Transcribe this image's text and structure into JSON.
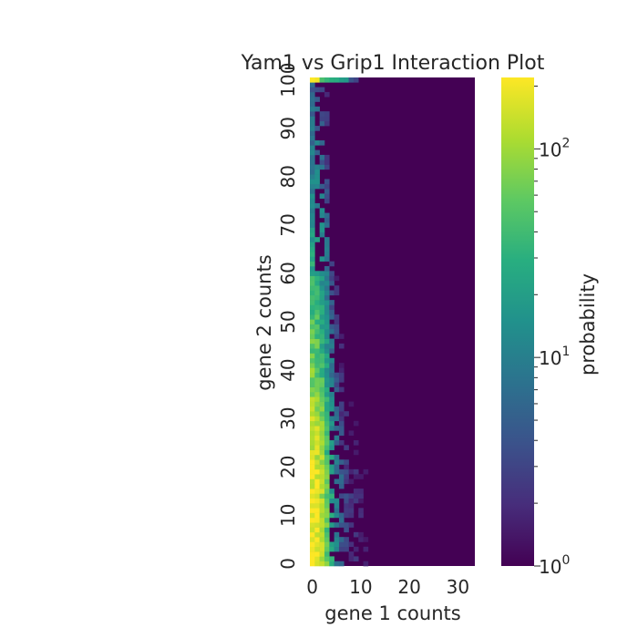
{
  "chart_data": {
    "type": "heatmap",
    "title": "Yam1 vs Grip1 Interaction Plot",
    "xlabel": "gene 1 counts",
    "ylabel": "gene 2 counts",
    "colorbar_label": "probability",
    "colorbar_scale": "log",
    "colorbar_range": [
      1,
      220
    ],
    "colorbar_ticks": [
      {
        "base": "10",
        "exp": "0"
      },
      {
        "base": "10",
        "exp": "1"
      },
      {
        "base": "10",
        "exp": "2"
      }
    ],
    "colormap": "viridis",
    "x_range": [
      0,
      33
    ],
    "y_range": [
      0,
      100
    ],
    "x_ticks": [
      "0",
      "10",
      "20",
      "30"
    ],
    "y_ticks": [
      "0",
      "10",
      "20",
      "30",
      "40",
      "50",
      "60",
      "70",
      "80",
      "90",
      "100"
    ],
    "grid": false,
    "background_value": 1,
    "description_of_values": "probability per (gene 1 count, gene 2 count) cell; highest near gene 1 = 0-1 at gene 2 = 0-20 and along gene 2 = 100",
    "profile_columns": {
      "gene1": [
        0,
        1,
        2,
        3,
        4,
        5,
        6,
        7,
        8,
        10,
        12
      ],
      "peak_at_gene2_0_to_20": [
        210,
        190,
        120,
        60,
        25,
        10,
        5,
        3,
        2,
        1.5,
        1
      ]
    },
    "top_row_gene2_100": [
      {
        "gene1": 0,
        "value": 220
      },
      {
        "gene1": 1,
        "value": 200
      },
      {
        "gene1": 2,
        "value": 45
      },
      {
        "gene1": 3,
        "value": 35
      },
      {
        "gene1": 4,
        "value": 30
      },
      {
        "gene1": 5,
        "value": 28
      },
      {
        "gene1": 6,
        "value": 20
      },
      {
        "gene1": 7,
        "value": 18
      },
      {
        "gene1": 8,
        "value": 4
      },
      {
        "gene1": 9,
        "value": 3
      }
    ]
  }
}
